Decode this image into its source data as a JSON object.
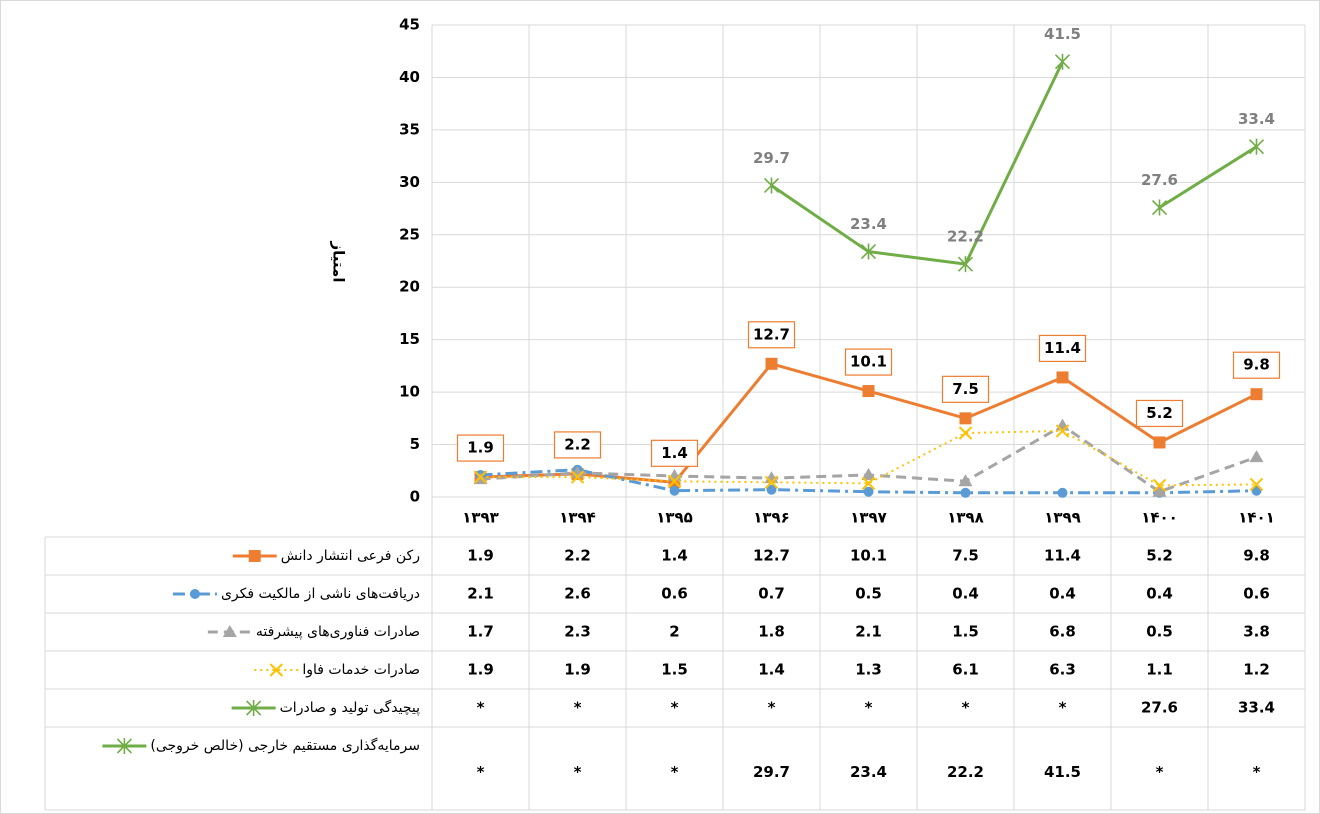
{
  "chart_data": {
    "type": "line",
    "y_label": "امتیاز",
    "categories": [
      "۱۳۹۳",
      "۱۳۹۴",
      "۱۳۹۵",
      "۱۳۹۶",
      "۱۳۹۷",
      "۱۳۹۸",
      "۱۳۹۹",
      "۱۴۰۰",
      "۱۴۰۱"
    ],
    "ylim": [
      0,
      45
    ],
    "yticks": [
      0,
      5,
      10,
      15,
      20,
      25,
      30,
      35,
      40,
      45
    ],
    "grid": true,
    "series": [
      {
        "name": "رکن فرعی انتشار دانش",
        "color": "#ed7d31",
        "marker": "square",
        "dash": "solid",
        "labels": "boxed",
        "values": [
          1.9,
          2.2,
          1.4,
          12.7,
          10.1,
          7.5,
          11.4,
          5.2,
          9.8
        ]
      },
      {
        "name": "دریافت‌های ناشی از مالکیت فکری",
        "color": "#5b9bd5",
        "marker": "circle",
        "dash": "dashdot",
        "labels": "none",
        "values": [
          2.1,
          2.6,
          0.6,
          0.7,
          0.5,
          0.4,
          0.4,
          0.4,
          0.6
        ]
      },
      {
        "name": "صادرات فناوری‌های پیشرفته",
        "color": "#a5a5a5",
        "marker": "triangle",
        "dash": "dash",
        "labels": "none",
        "values": [
          1.7,
          2.3,
          2,
          1.8,
          2.1,
          1.5,
          6.8,
          0.5,
          3.8
        ]
      },
      {
        "name": "صادرات خدمات فاوا",
        "color": "#ffc000",
        "marker": "x",
        "dash": "dot",
        "labels": "none",
        "values": [
          1.9,
          1.9,
          1.5,
          1.4,
          1.3,
          6.1,
          6.3,
          1.1,
          1.2
        ]
      },
      {
        "name": "پیچیدگی تولید و صادرات",
        "color": "#70ad47",
        "marker": "star",
        "dash": "solid",
        "labels": "above",
        "values": [
          null,
          null,
          null,
          null,
          null,
          null,
          null,
          27.6,
          33.4
        ],
        "value_labels": [
          "*",
          "*",
          "*",
          "*",
          "*",
          "*",
          "*",
          "27.6",
          "33.4"
        ]
      },
      {
        "name": "سرمایه‌گذاری مستقیم خارجی (خالص خروجی)",
        "color": "#70ad47",
        "marker": "star",
        "dash": "solid",
        "labels": "above",
        "values": [
          null,
          null,
          null,
          29.7,
          23.4,
          22.2,
          41.5,
          null,
          null
        ],
        "value_labels": [
          "*",
          "*",
          "*",
          "29.7",
          "23.4",
          "22.2",
          "41.5",
          "*",
          "*"
        ]
      }
    ]
  }
}
